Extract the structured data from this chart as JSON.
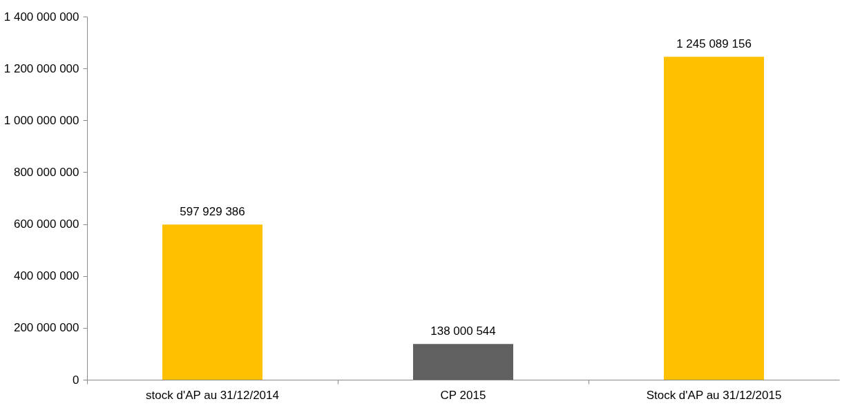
{
  "chart_data": {
    "type": "bar",
    "categories": [
      "stock d'AP au 31/12/2014",
      "CP 2015",
      "Stock d'AP au 31/12/2015"
    ],
    "values": [
      597929386,
      138000544,
      1245089156
    ],
    "colors": [
      "#ffc000",
      "#606060",
      "#ffc000"
    ],
    "value_labels": [
      "597 929 386",
      "138 000 544",
      "1 245 089 156"
    ],
    "ylim": [
      0,
      1400000000
    ],
    "yticks": [
      {
        "value": 0,
        "label": "0"
      },
      {
        "value": 200000000,
        "label": "200 000 000"
      },
      {
        "value": 400000000,
        "label": "400 000 000"
      },
      {
        "value": 600000000,
        "label": "600 000 000"
      },
      {
        "value": 800000000,
        "label": "800 000 000"
      },
      {
        "value": 1000000000,
        "label": "1 000 000 000"
      },
      {
        "value": 1200000000,
        "label": "1 200 000 000"
      },
      {
        "value": 1400000000,
        "label": "1 400 000 000"
      }
    ],
    "grid": false
  }
}
